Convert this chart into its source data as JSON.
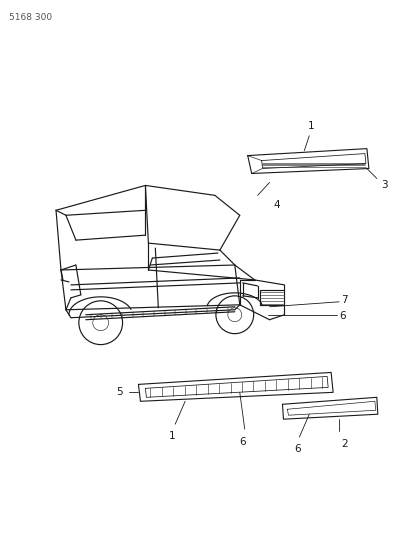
{
  "background_color": "#ffffff",
  "page_id": "5168 300",
  "line_color": "#1a1a1a",
  "label_color": "#1a1a1a",
  "label_fontsize": 7.5,
  "fig_width": 4.1,
  "fig_height": 5.33,
  "dpi": 100,
  "car_color": "#1a1a1a",
  "car_lw": 0.85,
  "part_lw": 0.8,
  "leader_lw": 0.6
}
